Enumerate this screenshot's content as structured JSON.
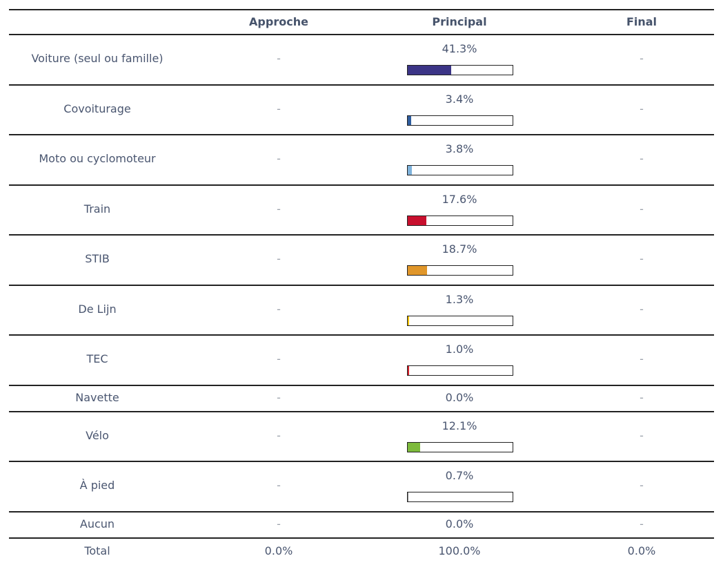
{
  "table": {
    "headers": [
      "Approche",
      "Principal",
      "Final"
    ],
    "rows": [
      {
        "label": "Voiture (seul ou famille)",
        "approche": "-",
        "principal": {
          "value": 41.3,
          "label": "41.3%"
        },
        "final": "-",
        "color": "#3b3486"
      },
      {
        "label": "Covoiturage",
        "approche": "-",
        "principal": {
          "value": 3.4,
          "label": "3.4%"
        },
        "final": "-",
        "color": "#2f5d9e"
      },
      {
        "label": "Moto ou cyclomoteur",
        "approche": "-",
        "principal": {
          "value": 3.8,
          "label": "3.8%"
        },
        "final": "-",
        "color": "#7fb3dc"
      },
      {
        "label": "Train",
        "approche": "-",
        "principal": {
          "value": 17.6,
          "label": "17.6%"
        },
        "final": "-",
        "color": "#c8102e"
      },
      {
        "label": "STIB",
        "approche": "-",
        "principal": {
          "value": 18.7,
          "label": "18.7%"
        },
        "final": "-",
        "color": "#e0962a"
      },
      {
        "label": "De Lijn",
        "approche": "-",
        "principal": {
          "value": 1.3,
          "label": "1.3%"
        },
        "final": "-",
        "color": "#f2c200"
      },
      {
        "label": "TEC",
        "approche": "-",
        "principal": {
          "value": 1.0,
          "label": "1.0%"
        },
        "final": "-",
        "color": "#d6212b"
      },
      {
        "label": "Navette",
        "approche": "-",
        "principal": {
          "value": 0,
          "label": "0.0%"
        },
        "final": "-"
      },
      {
        "label": "Vélo",
        "approche": "-",
        "principal": {
          "value": 12.1,
          "label": "12.1%"
        },
        "final": "-",
        "color": "#7dba3c"
      },
      {
        "label": "À pied",
        "approche": "-",
        "principal": {
          "value": 0.7,
          "label": "0.7%"
        },
        "final": "-",
        "color": "#888888"
      },
      {
        "label": "Aucun",
        "approche": "-",
        "principal": {
          "value": 0,
          "label": "0.0%"
        },
        "final": "-"
      }
    ],
    "total": {
      "label": "Total",
      "approche": "0.0%",
      "principal": "100.0%",
      "final": "0.0%"
    }
  }
}
